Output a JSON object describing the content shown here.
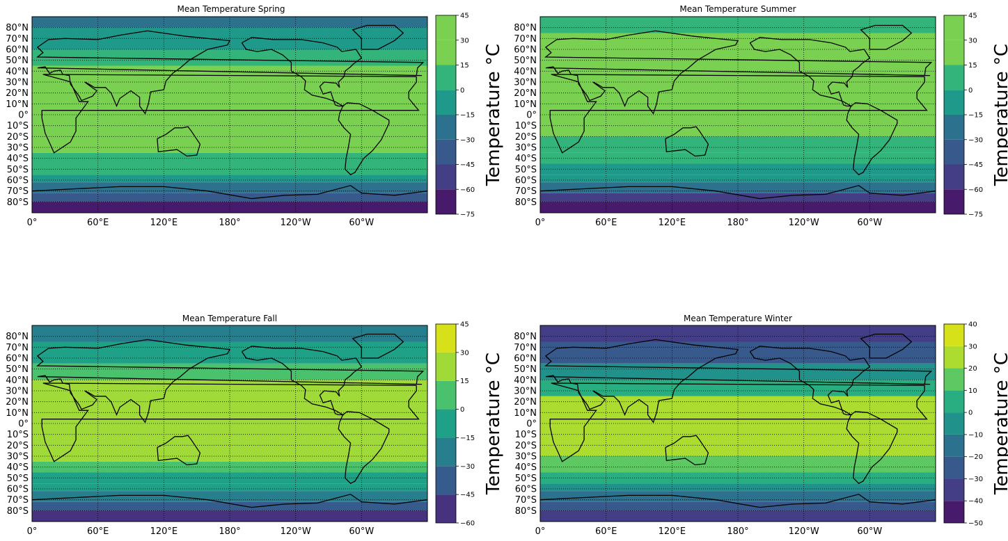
{
  "chart_data": [
    {
      "type": "heatmap",
      "title": "Mean Temperature Spring",
      "lat_labels": [
        "80°N",
        "70°N",
        "60°N",
        "50°N",
        "40°N",
        "30°N",
        "20°N",
        "10°N",
        "0°",
        "10°S",
        "20°S",
        "30°S",
        "40°S",
        "50°S",
        "60°S",
        "70°S",
        "80°S"
      ],
      "lon_labels": [
        "0°",
        "60°E",
        "120°E",
        "180°",
        "120°W",
        "60°W"
      ],
      "colorbar": {
        "label": "Temperature °C",
        "ticks": [
          -75,
          -60,
          -45,
          -30,
          -15,
          0,
          15,
          30,
          45
        ],
        "colors": [
          "#481a6c",
          "#433e85",
          "#38598c",
          "#2c728e",
          "#1f9a8a",
          "#33b47a",
          "#7ad151",
          "#7ad151",
          "#d7e11a"
        ]
      },
      "latitude_bands_degC": [
        {
          "lat_from": 90,
          "lat_to": 80,
          "temp": -25
        },
        {
          "lat_from": 80,
          "lat_to": 60,
          "temp": -10
        },
        {
          "lat_from": 60,
          "lat_to": 45,
          "temp": 5
        },
        {
          "lat_from": 45,
          "lat_to": -35,
          "temp": 22
        },
        {
          "lat_from": -35,
          "lat_to": -45,
          "temp": 10
        },
        {
          "lat_from": -45,
          "lat_to": -55,
          "temp": 2
        },
        {
          "lat_from": -55,
          "lat_to": -62,
          "temp": -8
        },
        {
          "lat_from": -62,
          "lat_to": -72,
          "temp": -25
        },
        {
          "lat_from": -72,
          "lat_to": -80,
          "temp": -45
        },
        {
          "lat_from": -80,
          "lat_to": -90,
          "temp": -62
        }
      ]
    },
    {
      "type": "heatmap",
      "title": "Mean Temperature Summer",
      "lat_labels": [
        "80°N",
        "70°N",
        "60°N",
        "50°N",
        "40°N",
        "30°N",
        "20°N",
        "10°N",
        "0°",
        "10°S",
        "20°S",
        "30°S",
        "40°S",
        "50°S",
        "60°S",
        "70°S",
        "80°S"
      ],
      "lon_labels": [
        "0°",
        "60°E",
        "120°E",
        "180°",
        "120°W",
        "60°W"
      ],
      "colorbar": {
        "label": "Temperature °C",
        "ticks": [
          -75,
          -60,
          -45,
          -30,
          -15,
          0,
          15,
          30,
          45
        ],
        "colors": [
          "#481a6c",
          "#433e85",
          "#38598c",
          "#2c728e",
          "#1f9a8a",
          "#33b47a",
          "#7ad151",
          "#7ad151",
          "#d7e11a"
        ]
      },
      "latitude_bands_degC": [
        {
          "lat_from": 90,
          "lat_to": 75,
          "temp": 5
        },
        {
          "lat_from": 75,
          "lat_to": 30,
          "temp": 20
        },
        {
          "lat_from": 30,
          "lat_to": -20,
          "temp": 22
        },
        {
          "lat_from": -20,
          "lat_to": -35,
          "temp": 12
        },
        {
          "lat_from": -35,
          "lat_to": -45,
          "temp": 5
        },
        {
          "lat_from": -45,
          "lat_to": -55,
          "temp": -2
        },
        {
          "lat_from": -55,
          "lat_to": -62,
          "temp": -12
        },
        {
          "lat_from": -62,
          "lat_to": -72,
          "temp": -30
        },
        {
          "lat_from": -72,
          "lat_to": -80,
          "temp": -50
        },
        {
          "lat_from": -80,
          "lat_to": -90,
          "temp": -62
        }
      ]
    },
    {
      "type": "heatmap",
      "title": "Mean Temperature Fall",
      "lat_labels": [
        "80°N",
        "70°N",
        "60°N",
        "50°N",
        "40°N",
        "30°N",
        "20°N",
        "10°N",
        "0°",
        "10°S",
        "20°S",
        "30°S",
        "40°S",
        "50°S",
        "60°S",
        "70°S",
        "80°S"
      ],
      "lon_labels": [
        "0°",
        "60°E",
        "120°E",
        "180°",
        "120°W",
        "60°W"
      ],
      "colorbar": {
        "label": "Temperature °C",
        "ticks": [
          -60,
          -45,
          -30,
          -15,
          0,
          15,
          30,
          45
        ],
        "colors": [
          "#46327e",
          "#365c8d",
          "#277f8e",
          "#1fa187",
          "#4ac16d",
          "#a0da39",
          "#d7e11a"
        ]
      },
      "latitude_bands_degC": [
        {
          "lat_from": 90,
          "lat_to": 75,
          "temp": -25
        },
        {
          "lat_from": 75,
          "lat_to": 55,
          "temp": -8
        },
        {
          "lat_from": 55,
          "lat_to": 40,
          "temp": 5
        },
        {
          "lat_from": 40,
          "lat_to": -35,
          "temp": 20
        },
        {
          "lat_from": -35,
          "lat_to": -45,
          "temp": 8
        },
        {
          "lat_from": -45,
          "lat_to": -55,
          "temp": -2
        },
        {
          "lat_from": -55,
          "lat_to": -62,
          "temp": -12
        },
        {
          "lat_from": -62,
          "lat_to": -72,
          "temp": -28
        },
        {
          "lat_from": -72,
          "lat_to": -80,
          "temp": -42
        },
        {
          "lat_from": -80,
          "lat_to": -90,
          "temp": -55
        }
      ]
    },
    {
      "type": "heatmap",
      "title": "Mean Temperature Winter",
      "lat_labels": [
        "80°N",
        "70°N",
        "60°N",
        "50°N",
        "40°N",
        "30°N",
        "20°N",
        "10°N",
        "0°",
        "10°S",
        "20°S",
        "30°S",
        "40°S",
        "50°S",
        "60°S",
        "70°S",
        "80°S"
      ],
      "lon_labels": [
        "0°",
        "60°E",
        "120°E",
        "180°",
        "120°W",
        "60°W"
      ],
      "colorbar": {
        "label": "Temperature °C",
        "ticks": [
          -50,
          -40,
          -30,
          -20,
          -10,
          0,
          10,
          20,
          30,
          40
        ],
        "colors": [
          "#481a6c",
          "#433e85",
          "#38598c",
          "#2c728e",
          "#21918c",
          "#28ae80",
          "#5ec962",
          "#addc30",
          "#d7e11a"
        ]
      },
      "latitude_bands_degC": [
        {
          "lat_from": 90,
          "lat_to": 75,
          "temp": -35
        },
        {
          "lat_from": 75,
          "lat_to": 55,
          "temp": -25
        },
        {
          "lat_from": 55,
          "lat_to": 40,
          "temp": -10
        },
        {
          "lat_from": 40,
          "lat_to": 25,
          "temp": 8
        },
        {
          "lat_from": 25,
          "lat_to": -30,
          "temp": 25
        },
        {
          "lat_from": -30,
          "lat_to": -45,
          "temp": 15
        },
        {
          "lat_from": -45,
          "lat_to": -55,
          "temp": 5
        },
        {
          "lat_from": -55,
          "lat_to": -62,
          "temp": -5
        },
        {
          "lat_from": -62,
          "lat_to": -72,
          "temp": -15
        },
        {
          "lat_from": -72,
          "lat_to": -80,
          "temp": -25
        },
        {
          "lat_from": -80,
          "lat_to": -90,
          "temp": -32
        }
      ]
    }
  ]
}
